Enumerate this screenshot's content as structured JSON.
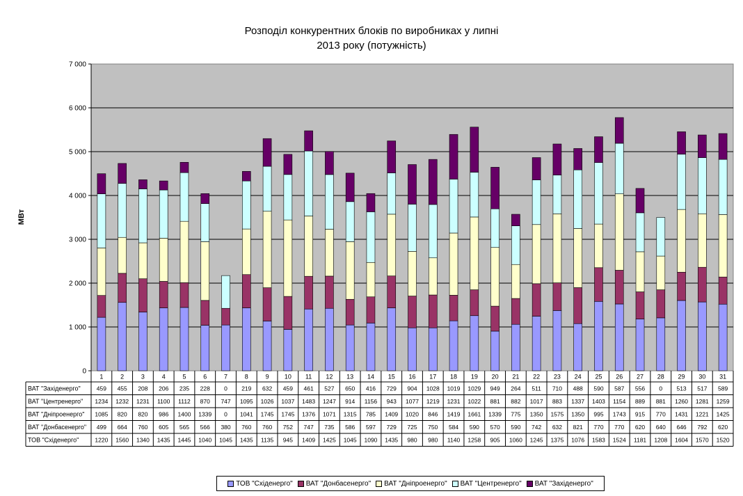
{
  "chart_data": {
    "type": "bar",
    "stacked": true,
    "title": [
      "Розподіл конкурентних блоків по виробниках у липні",
      "2013 року (потужність)"
    ],
    "ylabel": "МВт",
    "ylim": [
      0,
      7000
    ],
    "yticks": [
      0,
      1000,
      2000,
      3000,
      4000,
      5000,
      6000,
      7000
    ],
    "ytick_labels": [
      "0",
      "1 000",
      "2 000",
      "3 000",
      "4 000",
      "5 000",
      "6 000",
      "7 000"
    ],
    "grid": true,
    "legend_position": "bottom",
    "categories": [
      "1",
      "2",
      "3",
      "4",
      "5",
      "6",
      "7",
      "8",
      "9",
      "10",
      "11",
      "12",
      "13",
      "14",
      "15",
      "16",
      "17",
      "18",
      "19",
      "20",
      "21",
      "22",
      "23",
      "24",
      "25",
      "26",
      "27",
      "28",
      "29",
      "30",
      "31"
    ],
    "series": [
      {
        "name": "ТОВ \"Східенерго\"",
        "color": "#9999ff",
        "values": [
          1220,
          1560,
          1340,
          1435,
          1445,
          1040,
          1045,
          1435,
          1135,
          945,
          1409,
          1425,
          1045,
          1090,
          1435,
          980,
          980,
          1140,
          1258,
          905,
          1060,
          1245,
          1375,
          1076,
          1583,
          1524,
          1181,
          1208,
          1604,
          1570,
          1520
        ]
      },
      {
        "name": "ВАТ \"Донбасенерго\"",
        "color": "#993366",
        "values": [
          499,
          664,
          760,
          605,
          565,
          566,
          380,
          760,
          760,
          752,
          747,
          735,
          586,
          597,
          729,
          725,
          750,
          584,
          590,
          570,
          590,
          742,
          632,
          821,
          770,
          770,
          620,
          640,
          646,
          792,
          620
        ]
      },
      {
        "name": "ВАТ \"Дніпроенерго\"",
        "color": "#ffffcc",
        "values": [
          1085,
          820,
          820,
          986,
          1400,
          1339,
          0,
          1041,
          1745,
          1745,
          1376,
          1071,
          1315,
          785,
          1409,
          1020,
          846,
          1419,
          1661,
          1339,
          775,
          1350,
          1575,
          1350,
          995,
          1743,
          915,
          770,
          1431,
          1221,
          1425
        ]
      },
      {
        "name": "ВАТ \"Центренерго\"",
        "color": "#ccffff",
        "values": [
          1234,
          1232,
          1231,
          1100,
          1112,
          870,
          747,
          1095,
          1026,
          1037,
          1483,
          1247,
          914,
          1156,
          943,
          1077,
          1219,
          1231,
          1022,
          881,
          882,
          1017,
          883,
          1337,
          1403,
          1154,
          889,
          881,
          1260,
          1281,
          1259
        ]
      },
      {
        "name": "ВАТ \"Західенерго\"",
        "color": "#660066",
        "values": [
          459,
          455,
          208,
          206,
          235,
          228,
          0,
          219,
          632,
          459,
          461,
          527,
          650,
          416,
          729,
          904,
          1028,
          1019,
          1029,
          949,
          264,
          511,
          710,
          488,
          590,
          587,
          556,
          0,
          513,
          517,
          589
        ]
      }
    ],
    "table_row_order": [
      4,
      3,
      2,
      1,
      0
    ]
  }
}
